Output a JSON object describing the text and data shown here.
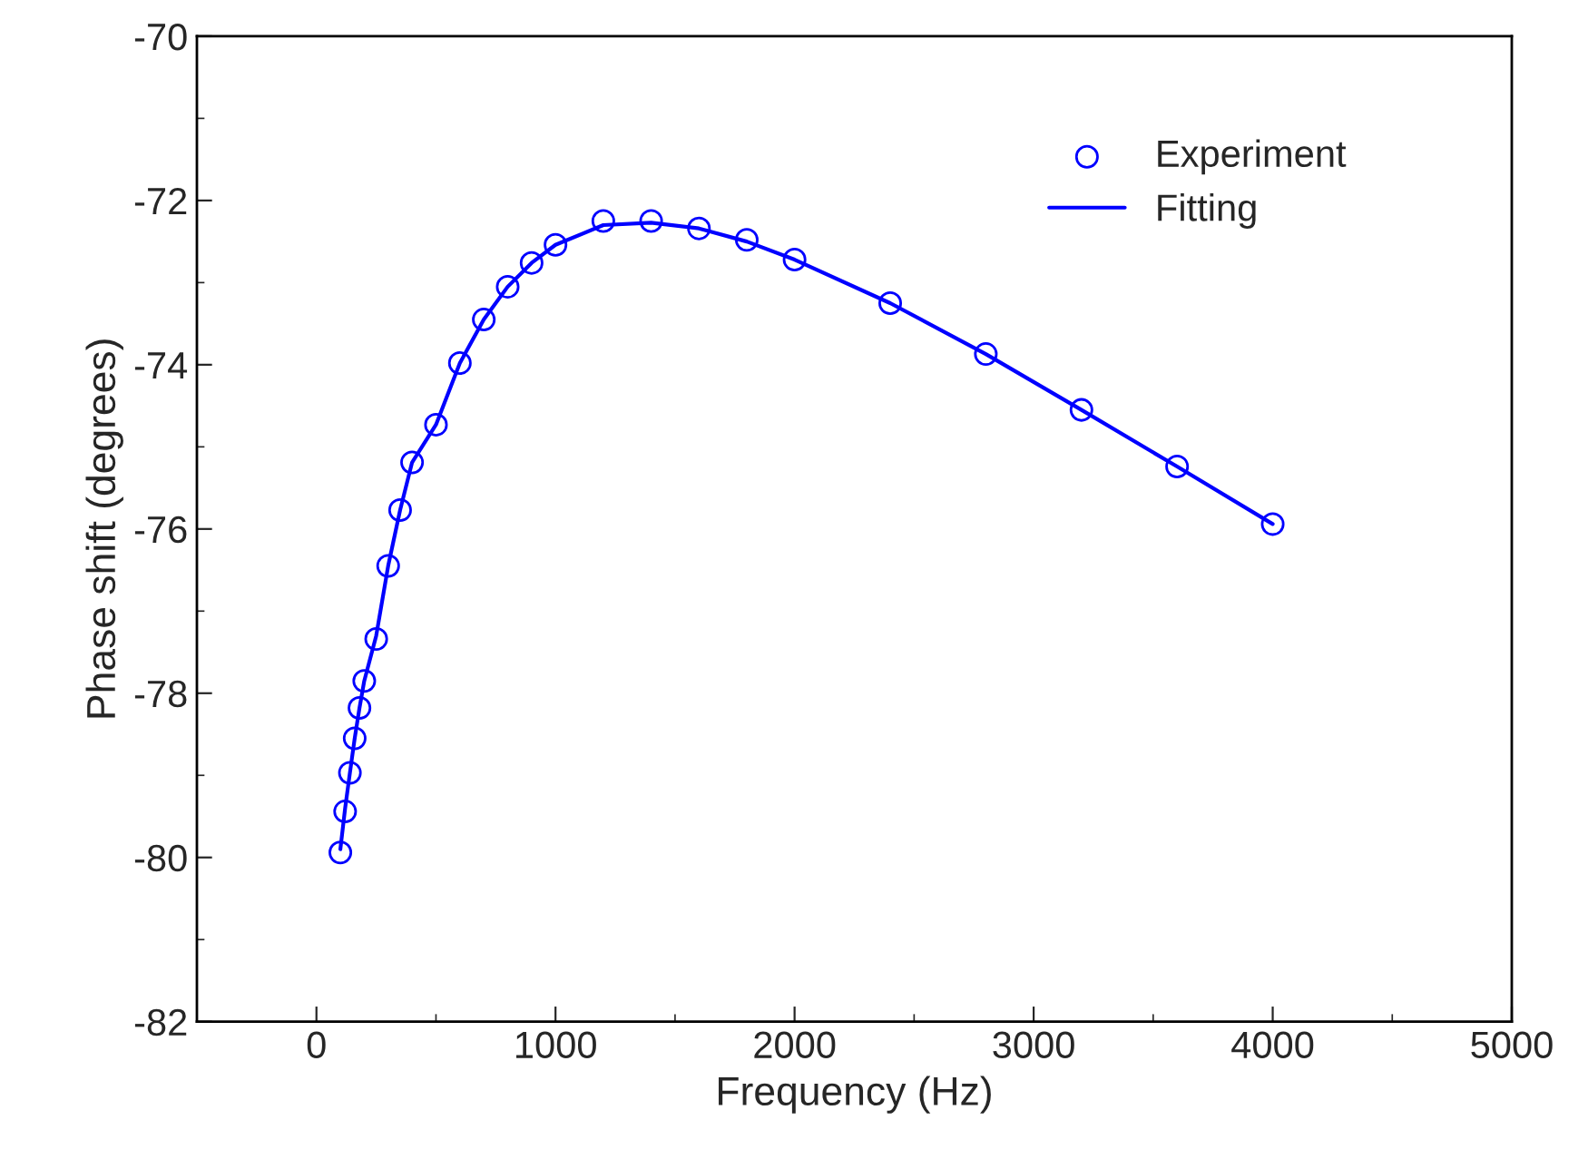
{
  "chart_data": {
    "type": "scatter",
    "xlabel": "Frequency (Hz)",
    "ylabel": "Phase shift (degrees)",
    "xlim": [
      -500,
      5000
    ],
    "xticks": [
      0,
      1000,
      2000,
      3000,
      4000,
      5000
    ],
    "ylim": [
      -82,
      -70
    ],
    "yticks": [
      -82,
      -80,
      -78,
      -76,
      -74,
      -72,
      -70
    ],
    "grid": false,
    "legend": "top right",
    "x": [
      100,
      120,
      140,
      160,
      180,
      200,
      250,
      300,
      350,
      400,
      500,
      600,
      700,
      800,
      900,
      1000,
      1200,
      1400,
      1600,
      1800,
      2000,
      2400,
      2800,
      3200,
      3600,
      4000
    ],
    "series": [
      {
        "name": "Experiment",
        "marker": "circle",
        "color": "#0000ff",
        "values": [
          -79.94,
          -79.44,
          -78.97,
          -78.55,
          -78.18,
          -77.85,
          -77.34,
          -76.45,
          -75.77,
          -75.19,
          -74.73,
          -73.98,
          -73.45,
          -73.05,
          -72.76,
          -72.54,
          -72.25,
          -72.25,
          -72.34,
          -72.48,
          -72.72,
          -73.25,
          -73.87,
          -74.55,
          -75.24,
          -75.94
        ]
      },
      {
        "name": "Fitting",
        "type": "line",
        "marker": "none",
        "line_style": "solid",
        "color": "#0000ff",
        "x": [
          100,
          120,
          140,
          160,
          180,
          200,
          250,
          300,
          350,
          400,
          500,
          600,
          700,
          800,
          900,
          1000,
          1200,
          1400,
          1600,
          1800,
          2000,
          2400,
          2800,
          3200,
          3600,
          4000
        ],
        "values": [
          -79.9,
          -79.4,
          -78.97,
          -78.55,
          -78.18,
          -77.85,
          -77.3,
          -76.45,
          -75.77,
          -75.19,
          -74.73,
          -73.98,
          -73.45,
          -73.05,
          -72.76,
          -72.54,
          -72.3,
          -72.27,
          -72.34,
          -72.5,
          -72.72,
          -73.25,
          -73.87,
          -74.55,
          -75.24,
          -75.94
        ]
      }
    ]
  }
}
